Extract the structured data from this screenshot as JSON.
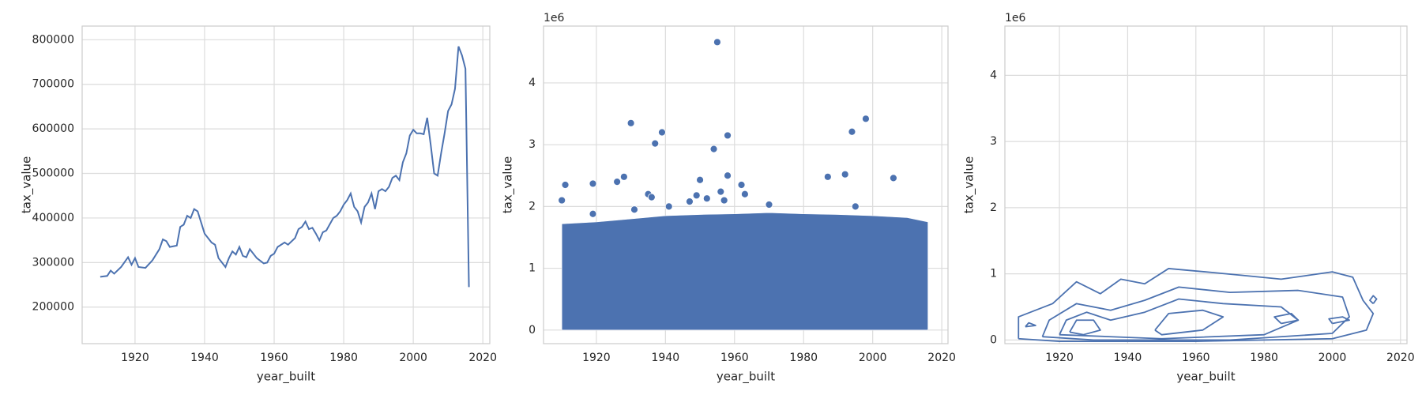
{
  "chart_data": [
    {
      "type": "line",
      "xlabel": "year_built",
      "ylabel": "tax_value",
      "color": "#4c72b0",
      "grid": true,
      "xlim": [
        1904.8,
        2022
      ],
      "xticks": [
        1920,
        1940,
        1960,
        1980,
        2000,
        2020
      ],
      "ylim": [
        118000,
        830700
      ],
      "yticks": [
        200000,
        300000,
        400000,
        500000,
        600000,
        700000,
        800000
      ],
      "x": [
        1910,
        1912,
        1913,
        1914,
        1916,
        1918,
        1919,
        1920,
        1921,
        1923,
        1925,
        1927,
        1928,
        1929,
        1930,
        1932,
        1933,
        1934,
        1935,
        1936,
        1937,
        1938,
        1939,
        1940,
        1942,
        1943,
        1944,
        1946,
        1947,
        1948,
        1949,
        1950,
        1951,
        1952,
        1953,
        1955,
        1957,
        1958,
        1959,
        1960,
        1961,
        1963,
        1964,
        1966,
        1967,
        1968,
        1969,
        1970,
        1971,
        1972,
        1973,
        1974,
        1975,
        1977,
        1978,
        1979,
        1980,
        1981,
        1982,
        1983,
        1984,
        1985,
        1986,
        1987,
        1988,
        1989,
        1990,
        1991,
        1992,
        1993,
        1994,
        1995,
        1996,
        1997,
        1998,
        1999,
        2000,
        2001,
        2002,
        2003,
        2004,
        2005,
        2006,
        2007,
        2008,
        2009,
        2010,
        2011,
        2012,
        2013,
        2014,
        2015,
        2016
      ],
      "values": [
        268000,
        270000,
        282000,
        275000,
        290000,
        312000,
        295000,
        310000,
        290000,
        288000,
        305000,
        330000,
        352000,
        348000,
        335000,
        338000,
        380000,
        385000,
        405000,
        400000,
        420000,
        415000,
        390000,
        365000,
        345000,
        340000,
        310000,
        290000,
        310000,
        325000,
        318000,
        335000,
        315000,
        312000,
        330000,
        310000,
        298000,
        300000,
        315000,
        320000,
        335000,
        345000,
        340000,
        355000,
        375000,
        380000,
        392000,
        375000,
        378000,
        365000,
        350000,
        368000,
        372000,
        400000,
        405000,
        415000,
        430000,
        440000,
        455000,
        425000,
        415000,
        390000,
        425000,
        435000,
        455000,
        420000,
        460000,
        465000,
        460000,
        470000,
        490000,
        495000,
        485000,
        525000,
        545000,
        585000,
        598000,
        590000,
        590000,
        588000,
        625000,
        565000,
        500000,
        495000,
        545000,
        590000,
        640000,
        655000,
        690000,
        785000,
        765000,
        735000,
        245000
      ]
    },
    {
      "type": "scatter",
      "xlabel": "year_built",
      "ylabel": "tax_value",
      "y_offset_label": "1e6",
      "color": "#4c72b0",
      "grid": true,
      "xlim": [
        1904.7,
        2021.8
      ],
      "xticks": [
        1920,
        1940,
        1960,
        1980,
        2000,
        2020
      ],
      "ylim": [
        -0.22,
        4.92
      ],
      "yticks": [
        0,
        1,
        2,
        3,
        4
      ],
      "dense_region": {
        "x": [
          1910,
          1920,
          1930,
          1940,
          1950,
          1960,
          1970,
          1980,
          1990,
          2000,
          2010,
          2016
        ],
        "upper": [
          1.72,
          1.75,
          1.8,
          1.85,
          1.87,
          1.88,
          1.9,
          1.88,
          1.87,
          1.85,
          1.82,
          1.75
        ]
      },
      "x": [
        1910,
        1911,
        1919,
        1926,
        1928,
        1930,
        1935,
        1936,
        1937,
        1939,
        1941,
        1947,
        1949,
        1950,
        1952,
        1954,
        1955,
        1956,
        1957,
        1958,
        1958,
        1962,
        1963,
        1987,
        1992,
        1994,
        1995,
        1998,
        2006,
        1931,
        1919,
        1970
      ],
      "values": [
        2.1,
        2.35,
        2.37,
        2.4,
        2.48,
        3.35,
        2.2,
        2.15,
        3.02,
        3.2,
        2.0,
        2.08,
        2.18,
        2.43,
        2.13,
        2.93,
        4.66,
        2.24,
        2.1,
        3.15,
        2.5,
        2.35,
        2.2,
        2.48,
        2.52,
        3.21,
        2.0,
        3.42,
        2.46,
        1.95,
        1.88,
        2.03
      ]
    },
    {
      "type": "kde",
      "xlabel": "year_built",
      "ylabel": "tax_value",
      "y_offset_label": "1e6",
      "color": "#4c72b0",
      "grid": true,
      "xlim": [
        1904,
        2021.9
      ],
      "xticks": [
        1920,
        1940,
        1960,
        1980,
        2000,
        2020
      ],
      "ylim": [
        -0.055,
        4.745
      ],
      "yticks": [
        0,
        1,
        2,
        3,
        4
      ],
      "contours": [
        {
          "x": [
            1908,
            1908,
            1918,
            1925,
            1932,
            1938,
            1945,
            1952,
            1965,
            1975,
            1985,
            1992,
            2000,
            2006,
            2009,
            2012,
            2010,
            2000,
            1960,
            1920,
            1908
          ],
          "y": [
            0.02,
            0.35,
            0.55,
            0.88,
            0.7,
            0.92,
            0.85,
            1.08,
            1.02,
            0.97,
            0.92,
            0.97,
            1.03,
            0.95,
            0.6,
            0.4,
            0.15,
            0.02,
            -0.02,
            -0.02,
            0.02
          ]
        },
        {
          "x": [
            1915,
            1917,
            1925,
            1935,
            1945,
            1955,
            1970,
            1990,
            2003,
            2005,
            2000,
            1970,
            1930,
            1915
          ],
          "y": [
            0.05,
            0.3,
            0.55,
            0.45,
            0.6,
            0.8,
            0.72,
            0.75,
            0.65,
            0.35,
            0.1,
            0.0,
            0.0,
            0.05
          ]
        },
        {
          "x": [
            1920,
            1922,
            1928,
            1935,
            1945,
            1955,
            1968,
            1985,
            1990,
            1980,
            1950,
            1920
          ],
          "y": [
            0.08,
            0.3,
            0.42,
            0.3,
            0.42,
            0.62,
            0.55,
            0.5,
            0.3,
            0.08,
            0.02,
            0.08
          ]
        },
        {
          "x": [
            1923,
            1925,
            1930,
            1932,
            1927,
            1923
          ],
          "y": [
            0.12,
            0.3,
            0.3,
            0.15,
            0.08,
            0.12
          ]
        },
        {
          "x": [
            1948,
            1952,
            1962,
            1968,
            1962,
            1950,
            1948
          ],
          "y": [
            0.15,
            0.4,
            0.45,
            0.35,
            0.15,
            0.08,
            0.15
          ]
        },
        {
          "x": [
            1985,
            1990,
            1988,
            1983,
            1985
          ],
          "y": [
            0.25,
            0.3,
            0.4,
            0.35,
            0.25
          ]
        },
        {
          "x": [
            1910,
            1913,
            1911,
            1910
          ],
          "y": [
            0.2,
            0.22,
            0.26,
            0.2
          ]
        },
        {
          "x": [
            2000,
            2005,
            2003,
            1999,
            2000
          ],
          "y": [
            0.25,
            0.3,
            0.35,
            0.32,
            0.25
          ]
        },
        {
          "x": [
            2012,
            2013,
            2012,
            2011,
            2012
          ],
          "y": [
            0.55,
            0.62,
            0.67,
            0.6,
            0.55
          ]
        }
      ]
    }
  ]
}
